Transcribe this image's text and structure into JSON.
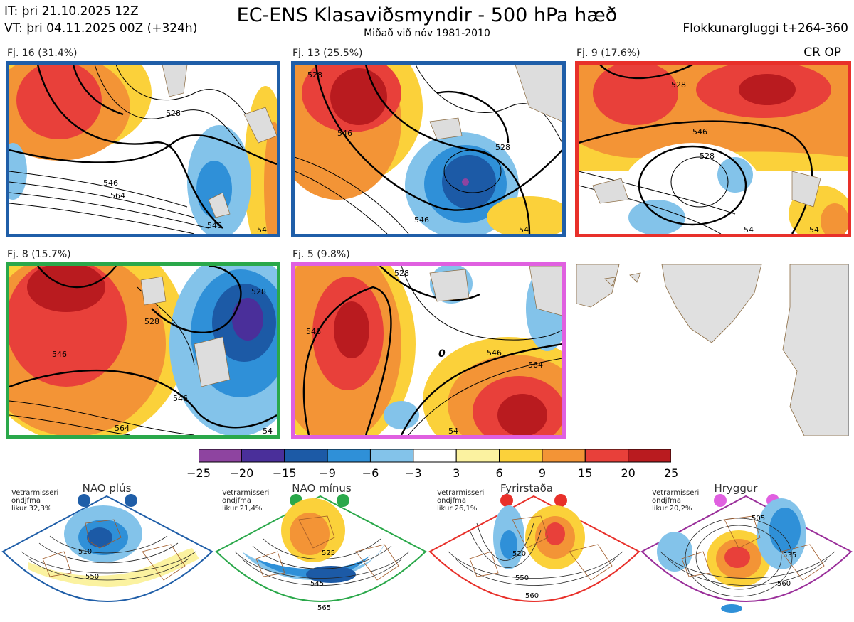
{
  "header": {
    "issue_time": "IT: þri 21.10.2025 12Z",
    "valid_time": "VT: þri 04.11.2025 00Z  (+324h)",
    "title": "EC-ENS Klasaviðsmyndir - 500 hPa hæð",
    "subtitle": "Miðað við nóv 1981-2010",
    "window": "Flokkunargluggi t+264-360"
  },
  "panels": [
    {
      "label": "Fj. 16 (31.4%)",
      "border": "#1f5ea8",
      "contours": [
        "528",
        "546",
        "564",
        "546",
        "54"
      ]
    },
    {
      "label": "Fj. 13 (25.5%)",
      "border": "#1f5ea8",
      "contours": [
        "528",
        "546",
        "528",
        "546",
        "54"
      ]
    },
    {
      "label": "Fj. 9 (17.6%)",
      "border": "#e8302a",
      "contours": [
        "528",
        "546",
        "528",
        "54",
        "54"
      ],
      "tag": "CR OP"
    },
    {
      "label": "Fj. 8 (15.7%)",
      "border": "#2aa84a",
      "contours": [
        "528",
        "546",
        "528",
        "546",
        "564",
        "54"
      ]
    },
    {
      "label": "Fj. 5 (9.8%)",
      "border": "#e060e0",
      "contours": [
        "528",
        "546",
        "546",
        "564",
        "54"
      ]
    }
  ],
  "colorbar": {
    "ticks": [
      "−25",
      "−20",
      "−15",
      "−9",
      "−6",
      "−3",
      "3",
      "6",
      "9",
      "15",
      "20",
      "25"
    ],
    "colors": [
      "#8e44a0",
      "#4a2f9a",
      "#1c5aa6",
      "#2f90d8",
      "#83c3ea",
      "#ffffff",
      "#fbf2a0",
      "#fbd13a",
      "#f39436",
      "#e8403a",
      "#b91b1f"
    ]
  },
  "regimes": [
    {
      "name": "NAO plús",
      "color": "#1f5ea8",
      "note": [
        "Vetrarmisseri",
        "ondjfma",
        "likur 32,3%"
      ],
      "contours": [
        "510",
        "550"
      ]
    },
    {
      "name": "NAO mínus",
      "color": "#2aa84a",
      "note": [
        "Vetrarmisseri",
        "ondjfma",
        "likur 21,4%"
      ],
      "contours": [
        "525",
        "545",
        "565"
      ]
    },
    {
      "name": "Fyrirstaða",
      "color": "#e8302a",
      "note": [
        "Vetrarmisseri",
        "ondjfma",
        "likur 26,1%"
      ],
      "contours": [
        "520",
        "550",
        "560"
      ]
    },
    {
      "name": "Hryggur",
      "color": "#9a2f9a",
      "dot": "#e060e0",
      "note": [
        "Vetrarmisseri",
        "ondjfma",
        "likur 20,2%"
      ],
      "contours": [
        "505",
        "535",
        "560"
      ]
    }
  ]
}
